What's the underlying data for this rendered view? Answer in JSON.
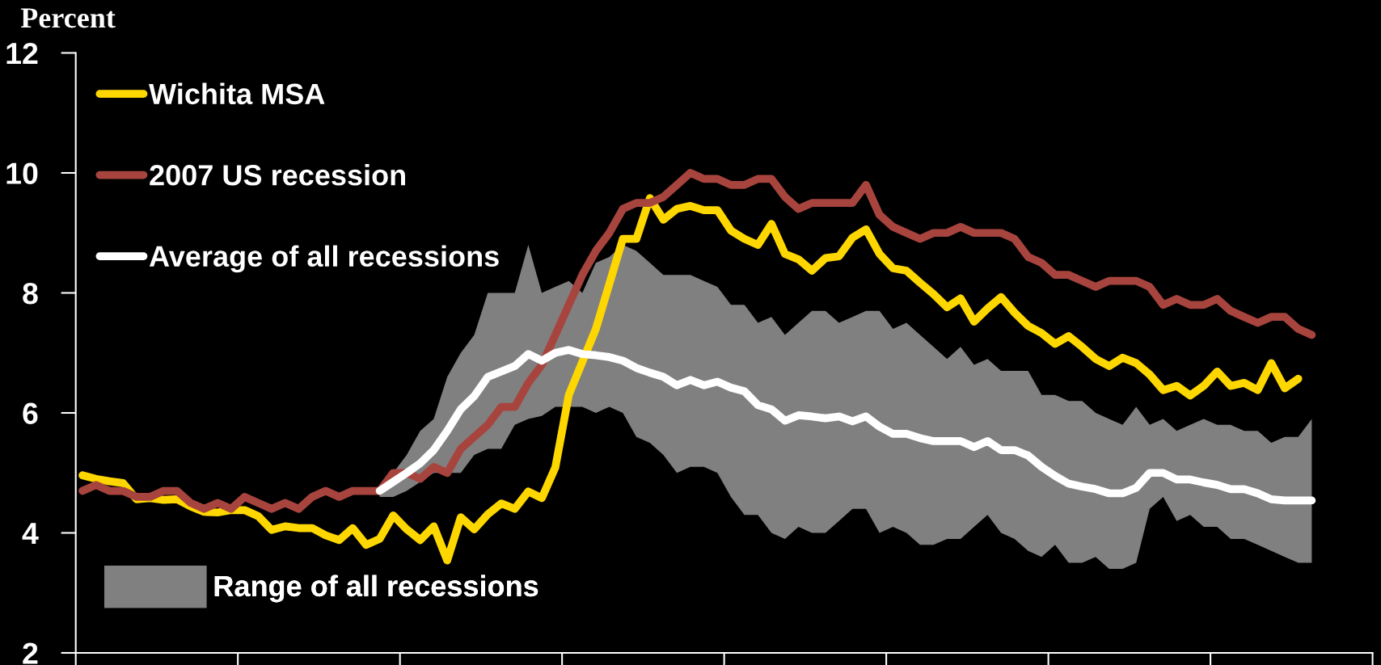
{
  "chart_data": {
    "type": "line",
    "ylabel": "Percent",
    "ylim": [
      2,
      12
    ],
    "yticks": [
      2,
      4,
      6,
      8,
      10,
      12
    ],
    "tick_labels": "y",
    "legend": "left",
    "line_style": "solid",
    "categories": [
      null,
      null,
      null,
      null,
      null,
      null,
      null,
      null,
      null,
      null,
      null,
      null,
      null,
      null,
      null,
      null,
      null,
      null,
      null,
      null,
      null,
      null,
      null,
      null,
      null,
      null,
      null,
      null,
      null,
      null,
      null,
      null,
      null,
      null,
      null,
      null,
      null,
      null,
      null,
      null,
      null,
      null,
      null,
      null,
      null,
      null,
      null,
      null,
      null,
      null,
      null,
      null,
      null,
      null,
      null,
      null,
      null,
      null,
      null,
      null,
      null,
      null,
      null,
      null,
      null,
      null,
      null,
      null,
      null,
      null,
      null,
      null,
      null,
      null,
      null,
      null,
      null,
      null,
      null,
      null,
      null,
      null,
      null,
      null,
      null,
      null,
      null,
      null,
      null,
      null,
      null,
      null,
      null,
      null,
      null,
      null
    ],
    "series": [
      {
        "name": "Wichita MSA",
        "color": "#ffd700",
        "values": [
          4.96,
          4.9,
          4.86,
          4.83,
          4.56,
          4.58,
          4.55,
          4.56,
          4.44,
          4.35,
          4.34,
          4.38,
          4.38,
          4.28,
          4.05,
          4.11,
          4.08,
          4.08,
          3.96,
          3.88,
          4.08,
          3.8,
          3.9,
          4.29,
          4.06,
          3.88,
          4.11,
          3.54,
          4.26,
          4.06,
          4.31,
          4.49,
          4.4,
          4.69,
          4.58,
          5.09,
          6.3,
          6.85,
          7.4,
          8.15,
          8.9,
          8.9,
          9.58,
          9.22,
          9.4,
          9.45,
          9.38,
          9.38,
          9.04,
          8.9,
          8.8,
          9.15,
          8.65,
          8.56,
          8.37,
          8.58,
          8.61,
          8.92,
          9.06,
          8.65,
          8.41,
          8.37,
          8.17,
          7.98,
          7.76,
          7.91,
          7.52,
          7.74,
          7.93,
          7.67,
          7.45,
          7.33,
          7.15,
          7.28,
          7.1,
          6.9,
          6.78,
          6.92,
          6.83,
          6.64,
          6.38,
          6.45,
          6.29,
          6.45,
          6.69,
          6.45,
          6.5,
          6.38,
          6.83,
          6.41,
          6.57,
          null,
          null,
          null,
          null,
          null
        ]
      },
      {
        "name": "2007 US recession",
        "color": "#a8443e",
        "values": [
          4.7,
          4.8,
          4.7,
          4.7,
          4.6,
          4.6,
          4.7,
          4.7,
          4.5,
          4.4,
          4.5,
          4.4,
          4.6,
          4.5,
          4.4,
          4.5,
          4.4,
          4.6,
          4.7,
          4.6,
          4.7,
          4.7,
          4.7,
          5.0,
          5.0,
          4.9,
          5.1,
          5.0,
          5.4,
          5.6,
          5.8,
          6.1,
          6.1,
          6.5,
          6.8,
          7.3,
          7.8,
          8.3,
          8.7,
          9.0,
          9.4,
          9.5,
          9.5,
          9.6,
          9.8,
          10.0,
          9.9,
          9.9,
          9.8,
          9.8,
          9.9,
          9.9,
          9.6,
          9.4,
          9.5,
          9.5,
          9.5,
          9.5,
          9.8,
          9.3,
          9.1,
          9.0,
          8.9,
          9.0,
          9.0,
          9.1,
          9.0,
          9.0,
          9.0,
          8.9,
          8.6,
          8.5,
          8.3,
          8.3,
          8.2,
          8.1,
          8.2,
          8.2,
          8.2,
          8.1,
          7.8,
          7.9,
          7.8,
          7.8,
          7.9,
          7.7,
          7.6,
          7.5,
          7.6,
          7.6,
          7.4,
          7.3,
          null,
          null,
          null,
          null
        ]
      },
      {
        "name": "Average of all recessions",
        "color": "#ffffff",
        "values": [
          null,
          null,
          null,
          null,
          null,
          null,
          null,
          null,
          null,
          null,
          null,
          null,
          null,
          null,
          null,
          null,
          null,
          null,
          null,
          null,
          null,
          null,
          4.7,
          4.85,
          5.0,
          5.16,
          5.38,
          5.7,
          6.06,
          6.28,
          6.6,
          6.69,
          6.78,
          6.98,
          6.87,
          7.0,
          7.05,
          6.98,
          6.96,
          6.93,
          6.87,
          6.75,
          6.67,
          6.6,
          6.46,
          6.55,
          6.46,
          6.52,
          6.42,
          6.36,
          6.13,
          6.06,
          5.87,
          5.96,
          5.94,
          5.91,
          5.94,
          5.86,
          5.94,
          5.77,
          5.65,
          5.65,
          5.58,
          5.53,
          5.53,
          5.53,
          5.43,
          5.53,
          5.38,
          5.38,
          5.29,
          5.1,
          4.95,
          4.82,
          4.77,
          4.73,
          4.66,
          4.66,
          4.75,
          5.0,
          5.0,
          4.89,
          4.89,
          4.84,
          4.8,
          4.73,
          4.73,
          4.66,
          4.56,
          4.54,
          4.54,
          4.54,
          null,
          null,
          null,
          null
        ]
      },
      {
        "name": "Range of all recessions",
        "type": "area",
        "color": "#808080",
        "values": [
          null,
          null,
          null,
          null,
          null,
          null,
          null,
          null,
          null,
          null,
          null,
          null,
          null,
          null,
          null,
          null,
          null,
          null,
          null,
          null,
          null,
          null,
          null,
          null,
          null,
          null,
          null,
          null,
          null,
          null,
          null,
          null,
          null,
          null,
          null,
          null,
          null,
          null,
          null,
          null,
          null,
          null,
          null,
          null,
          null,
          null,
          null,
          null,
          null,
          null,
          null,
          null,
          null,
          null,
          null,
          null,
          null,
          null,
          null,
          null,
          null,
          null,
          null,
          null,
          null,
          null,
          null,
          null,
          null,
          null,
          null,
          null,
          null,
          null,
          null,
          null,
          null,
          null,
          null,
          null,
          null,
          null,
          null,
          null,
          null,
          null,
          null,
          null,
          null,
          null,
          null,
          null,
          null,
          null,
          null,
          null
        ],
        "lower": [
          null,
          null,
          null,
          null,
          null,
          null,
          null,
          null,
          null,
          null,
          null,
          null,
          null,
          null,
          null,
          null,
          null,
          null,
          null,
          null,
          null,
          null,
          4.6,
          4.6,
          4.7,
          4.85,
          5.0,
          5.0,
          5.0,
          5.3,
          5.4,
          5.4,
          5.8,
          5.9,
          5.95,
          6.1,
          6.1,
          6.1,
          6.0,
          6.1,
          6.0,
          5.6,
          5.5,
          5.3,
          5.0,
          5.1,
          5.1,
          5.0,
          4.6,
          4.3,
          4.3,
          4.0,
          3.9,
          4.1,
          4.0,
          4.0,
          4.2,
          4.4,
          4.4,
          4.0,
          4.1,
          4.0,
          3.8,
          3.8,
          3.9,
          3.9,
          4.1,
          4.3,
          4.0,
          3.9,
          3.7,
          3.6,
          3.8,
          3.5,
          3.5,
          3.6,
          3.4,
          3.4,
          3.5,
          4.4,
          4.6,
          4.2,
          4.3,
          4.1,
          4.1,
          3.9,
          3.9,
          3.8,
          3.7,
          3.6,
          3.5,
          3.5,
          null,
          null,
          null,
          null
        ],
        "upper": [
          null,
          null,
          null,
          null,
          null,
          null,
          null,
          null,
          null,
          null,
          null,
          null,
          null,
          null,
          null,
          null,
          null,
          null,
          null,
          null,
          null,
          null,
          4.8,
          5.0,
          5.3,
          5.7,
          5.9,
          6.6,
          7.0,
          7.3,
          8.0,
          8.0,
          8.0,
          8.8,
          8.0,
          8.1,
          8.2,
          8.0,
          8.5,
          8.6,
          8.8,
          8.7,
          8.5,
          8.3,
          8.3,
          8.3,
          8.2,
          8.1,
          7.8,
          7.8,
          7.5,
          7.6,
          7.3,
          7.5,
          7.7,
          7.7,
          7.5,
          7.6,
          7.7,
          7.7,
          7.4,
          7.5,
          7.3,
          7.1,
          6.9,
          7.1,
          6.8,
          6.9,
          6.7,
          6.7,
          6.7,
          6.3,
          6.3,
          6.2,
          6.2,
          6.0,
          5.9,
          5.8,
          6.1,
          5.8,
          5.9,
          5.7,
          5.8,
          5.9,
          5.8,
          5.8,
          5.7,
          5.7,
          5.5,
          5.6,
          5.6,
          5.9,
          null,
          null,
          null,
          null
        ]
      }
    ]
  }
}
